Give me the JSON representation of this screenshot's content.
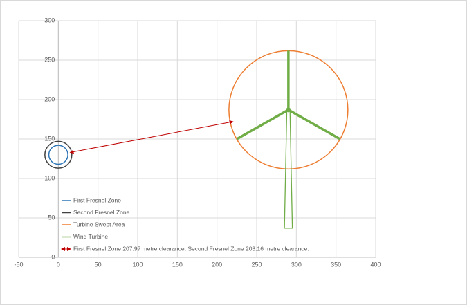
{
  "chart_data": {
    "type": "scatter",
    "xlim": [
      -50,
      400
    ],
    "ylim": [
      0,
      300
    ],
    "xticks": [
      -50,
      0,
      50,
      100,
      150,
      200,
      250,
      300,
      350,
      400
    ],
    "yticks": [
      0,
      50,
      100,
      150,
      200,
      250,
      300
    ],
    "grid": true,
    "legend": "lower-left",
    "circles": [
      {
        "name": "First Fresnel Zone",
        "color": "#2e75b6",
        "cx": 0,
        "cy": 130,
        "r": 12
      },
      {
        "name": "Second Fresnel Zone",
        "color": "#404040",
        "cx": 0,
        "cy": 130,
        "r": 17
      },
      {
        "name": "Turbine Swept Area",
        "color": "#ed7d31",
        "cx": 290,
        "cy": 187,
        "r": 75
      }
    ],
    "turbine": {
      "name": "Wind Turbine",
      "color": "#70ad47",
      "tower_x": [
        285,
        288,
        292,
        295,
        285
      ],
      "tower_y": [
        37,
        187,
        187,
        37,
        37
      ],
      "blades_x": [
        290,
        290,
        null,
        290,
        225,
        null,
        290,
        355
      ],
      "blades_y": [
        187,
        262,
        null,
        187,
        150,
        null,
        187,
        150
      ]
    },
    "arrow": {
      "name": "First Fresnel Zone 207.97 metre clearance; Second Fresnel Zone 203.16 metre clearance.",
      "color": "#c00000",
      "x": [
        15,
        220
      ],
      "y": [
        133,
        172
      ]
    }
  }
}
